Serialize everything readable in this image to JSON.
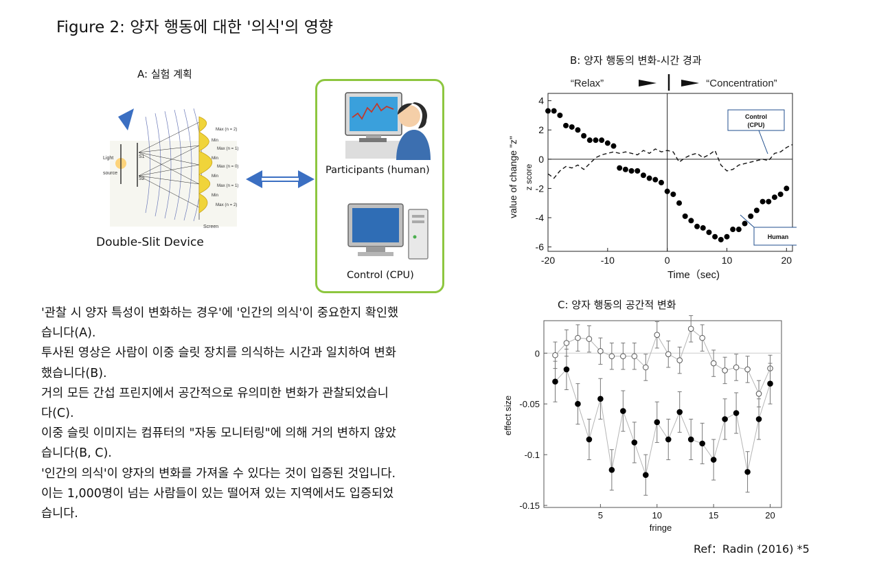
{
  "figure": {
    "title": "Figure 2: 양자 행동에 대한 '의식'의 영향",
    "panel_a_title": "A: 실험 계획",
    "panel_b_title": "B: 양자 행동의 변화-시간 경과",
    "panel_c_title": "C: 양자 행동의 공간적 변화",
    "device_label": "Double-Slit Device",
    "human_label": "Participants (human)",
    "cpu_label": "Control (CPU)",
    "device_light_labels": [
      "Light",
      "source",
      "S1",
      "S2",
      "Screen"
    ],
    "device_screen_labels": [
      "Max (n = 2)",
      "Min",
      "Max (n = 1)",
      "Min",
      "Max (n = 0)",
      "Min",
      "Max (n = 1)",
      "Min",
      "Max (n = 2)"
    ],
    "reference": "Ref：Radin (2016) *5"
  },
  "body_text": [
    "'관찰 시 양자 특성이 변화하는 경우'에 '인간의 의식'이 중요한지 확인했",
    "습니다(A).",
    "투사된 영상은 사람이 이중 슬릿 장치를 의식하는 시간과 일치하여 변화",
    "했습니다(B).",
    "거의 모든 간섭 프린지에서 공간적으로 유의미한 변화가 관찰되었습니",
    "다(C).",
    "이중 슬릿 이미지는 컴퓨터의 \"자동 모니터링\"에 의해 거의 변하지 않았",
    "습니다(B, C).",
    "'인간의 의식'이 양자의 변화를 가져올 수 있다는 것이 입증된 것입니다.",
    "이는 1,000명이 넘는 사람들이 있는 떨어져 있는 지역에서도 입증되었",
    "습니다."
  ],
  "chart_data": [
    {
      "type": "line",
      "panel": "B",
      "xlabel": "Time（sec)",
      "ylabel": "value of change \"z\"",
      "ylabel2": "z score",
      "xlim": [
        -20,
        21
      ],
      "ylim": [
        -6.3,
        4.5
      ],
      "xticks": [
        -20,
        -10,
        0,
        10,
        20
      ],
      "yticks": [
        4,
        2,
        0,
        -2,
        -4,
        -6
      ],
      "annotations": [
        "“Relax”",
        "“Concentration”"
      ],
      "series": [
        {
          "name": "Human",
          "style": "filled-dots",
          "x": [
            -20,
            -19,
            -18,
            -17,
            -16,
            -15,
            -14,
            -13,
            -12,
            -11,
            -10,
            -9,
            -8,
            -7,
            -6,
            -5,
            -4,
            -3,
            -2,
            -1,
            0,
            1,
            2,
            3,
            4,
            5,
            6,
            7,
            8,
            9,
            10,
            11,
            12,
            13,
            14,
            15,
            16,
            17,
            18,
            19,
            20
          ],
          "values": [
            3.3,
            3.3,
            3.0,
            2.3,
            2.2,
            2.0,
            1.6,
            1.3,
            1.3,
            1.3,
            1.1,
            0.9,
            -0.6,
            -0.7,
            -0.8,
            -0.8,
            -1.1,
            -1.3,
            -1.4,
            -1.6,
            -2.2,
            -2.4,
            -3.0,
            -3.9,
            -4.2,
            -4.6,
            -4.7,
            -5.0,
            -5.3,
            -5.5,
            -5.3,
            -4.8,
            -4.8,
            -4.4,
            -3.9,
            -3.5,
            -2.9,
            -2.9,
            -2.6,
            -2.4,
            -2.0
          ]
        },
        {
          "name": "Control (CPU)",
          "style": "dashed",
          "x": [
            -20,
            -19,
            -18,
            -17,
            -16,
            -15,
            -14,
            -13,
            -12,
            -11,
            -10,
            -9,
            -8,
            -7,
            -6,
            -5,
            -4,
            -3,
            -2,
            -1,
            0,
            1,
            2,
            3,
            4,
            5,
            6,
            7,
            8,
            9,
            10,
            11,
            12,
            13,
            14,
            15,
            16,
            17,
            18,
            19,
            20,
            21
          ],
          "values": [
            -1.0,
            -1.3,
            -0.8,
            -0.5,
            -0.6,
            -0.4,
            -0.7,
            -0.3,
            0.1,
            0.3,
            0.4,
            0.5,
            0.4,
            0.5,
            0.4,
            0.3,
            0.6,
            0.4,
            0.7,
            0.5,
            0.6,
            0.5,
            -0.2,
            0.1,
            0.3,
            0.4,
            0.1,
            0.3,
            0.6,
            -0.4,
            -0.8,
            -0.7,
            -0.4,
            -0.3,
            -0.2,
            -0.1,
            0.0,
            -0.1,
            0.4,
            0.5,
            0.8,
            1.0
          ]
        }
      ]
    },
    {
      "type": "scatter",
      "panel": "C",
      "xlabel": "fringe",
      "ylabel": "effect size",
      "xlim": [
        0,
        21
      ],
      "ylim": [
        -0.152,
        0.032
      ],
      "xticks": [
        5,
        10,
        15,
        20
      ],
      "yticks": [
        0,
        -0.05,
        -0.1,
        -0.15
      ],
      "ytick_labels": [
        "0",
        "-0.05",
        "-0.1",
        "-0.15"
      ],
      "series": [
        {
          "style": "open-circles",
          "x": [
            1,
            2,
            3,
            4,
            5,
            6,
            7,
            8,
            9,
            10,
            11,
            12,
            13,
            14,
            15,
            16,
            17,
            18,
            19,
            20
          ],
          "values": [
            -0.002,
            0.01,
            0.015,
            0.014,
            0.002,
            -0.003,
            -0.003,
            -0.003,
            -0.014,
            0.018,
            -0.001,
            -0.007,
            0.024,
            0.015,
            -0.01,
            -0.017,
            -0.014,
            -0.016,
            -0.04,
            -0.015
          ],
          "err": [
            0.013,
            0.013,
            0.013,
            0.013,
            0.013,
            0.013,
            0.013,
            0.013,
            0.013,
            0.013,
            0.013,
            0.013,
            0.013,
            0.013,
            0.013,
            0.013,
            0.013,
            0.013,
            0.013,
            0.013
          ]
        },
        {
          "style": "filled-circles",
          "x": [
            1,
            2,
            3,
            4,
            5,
            6,
            7,
            8,
            9,
            10,
            11,
            12,
            13,
            14,
            15,
            16,
            17,
            18,
            19,
            20
          ],
          "values": [
            -0.028,
            -0.016,
            -0.05,
            -0.085,
            -0.045,
            -0.115,
            -0.057,
            -0.088,
            -0.12,
            -0.068,
            -0.085,
            -0.058,
            -0.085,
            -0.089,
            -0.105,
            -0.065,
            -0.059,
            -0.117,
            -0.065,
            -0.03
          ],
          "err": [
            0.02,
            0.02,
            0.02,
            0.02,
            0.02,
            0.02,
            0.02,
            0.02,
            0.02,
            0.02,
            0.02,
            0.02,
            0.02,
            0.02,
            0.02,
            0.02,
            0.02,
            0.02,
            0.02,
            0.02
          ]
        }
      ]
    }
  ]
}
